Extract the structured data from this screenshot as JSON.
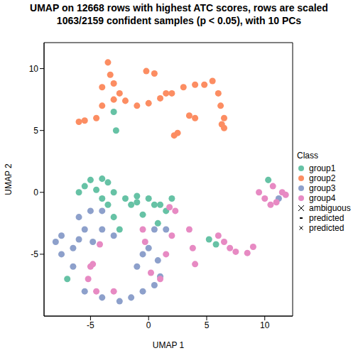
{
  "chart_data": {
    "type": "scatter",
    "title": "UMAP on 12668 rows with highest ATC scores, rows are scaled\n1063/2159 confident samples (p < 0.05), with 10 PCs",
    "x_label": "UMAP 1",
    "y_label": "UMAP 2",
    "legend_title": "Class",
    "legend": "right",
    "xlim": [
      -9,
      12.4
    ],
    "ylim": [
      -10,
      12.1
    ],
    "xticks": [
      -5,
      0,
      5,
      10
    ],
    "yticks": [
      -5,
      0,
      5,
      10
    ],
    "grid": false,
    "series": [
      {
        "name": "group1",
        "color": "#66C2A5",
        "marker": "circle",
        "values": [
          [
            -3,
            6.5
          ],
          [
            -2.8,
            5
          ],
          [
            -5.5,
            0.5
          ],
          [
            -6,
            0
          ],
          [
            -5,
            1
          ],
          [
            -4,
            1.1
          ],
          [
            -3.5,
            0.8
          ],
          [
            -4.5,
            0.2
          ],
          [
            -3.5,
            -1
          ],
          [
            -3,
            -2
          ],
          [
            -2,
            -0.5
          ],
          [
            -1.5,
            -1
          ],
          [
            -1,
            -0.3
          ],
          [
            0,
            -0.5
          ],
          [
            0.5,
            -1
          ],
          [
            1,
            -1
          ],
          [
            1.5,
            -1.5
          ],
          [
            -0.5,
            -1.8
          ],
          [
            -2.5,
            -3
          ],
          [
            5.2,
            -3.8
          ],
          [
            5.8,
            -4.2
          ],
          [
            10.3,
            1
          ],
          [
            -7,
            -7
          ],
          [
            -1,
            -0.8
          ],
          [
            2,
            -0.5
          ],
          [
            -4,
            -0.5
          ],
          [
            -3,
            0
          ],
          [
            0.8,
            -2.5
          ]
        ]
      },
      {
        "name": "group2",
        "color": "#FC8D62",
        "marker": "circle",
        "values": [
          [
            -3.5,
            10.5
          ],
          [
            -3.3,
            9.5
          ],
          [
            -3,
            8.8
          ],
          [
            -4,
            8.5
          ],
          [
            -2.5,
            8
          ],
          [
            -3,
            7.5
          ],
          [
            -4,
            7
          ],
          [
            -1,
            7
          ],
          [
            0,
            7.2
          ],
          [
            1,
            7.6
          ],
          [
            2,
            8
          ],
          [
            3,
            8.5
          ],
          [
            4,
            8.7
          ],
          [
            5.5,
            9
          ],
          [
            6,
            8
          ],
          [
            6.2,
            7
          ],
          [
            6.5,
            6
          ],
          [
            6.3,
            5.5
          ],
          [
            -6,
            5.7
          ],
          [
            -5.5,
            5.8
          ],
          [
            -4.5,
            6
          ],
          [
            -2,
            7.4
          ],
          [
            0.5,
            9.6
          ],
          [
            -0.2,
            9.8
          ],
          [
            2.5,
            4.8
          ],
          [
            2.2,
            4.6
          ],
          [
            4,
            6
          ],
          [
            3.5,
            6.2
          ],
          [
            1.5,
            8
          ],
          [
            4.8,
            8.7
          ],
          [
            6.5,
            5.2
          ]
        ]
      },
      {
        "name": "group3",
        "color": "#8DA0CB",
        "marker": "circle",
        "values": [
          [
            -7.5,
            -3.5
          ],
          [
            -8,
            -4
          ],
          [
            -7.5,
            -5
          ],
          [
            -6.5,
            -4.5
          ],
          [
            -6,
            -3.8
          ],
          [
            -5.5,
            -3
          ],
          [
            -6,
            -2
          ],
          [
            -5,
            -1.5
          ],
          [
            -4,
            -1.5
          ],
          [
            -4,
            -3
          ],
          [
            -4.8,
            -4
          ],
          [
            -5.5,
            -8
          ],
          [
            -4,
            -8.5
          ],
          [
            -2.5,
            -8.8
          ],
          [
            -1.5,
            -8.5
          ],
          [
            -0.5,
            -8
          ],
          [
            0.5,
            -7.5
          ],
          [
            -1,
            -6
          ],
          [
            -0.5,
            -5
          ],
          [
            0,
            -4.5
          ],
          [
            0.5,
            -3
          ],
          [
            1,
            -6.8
          ],
          [
            0.8,
            -5.5
          ],
          [
            -6.5,
            -6
          ],
          [
            -3,
            -3.5
          ],
          [
            11.2,
            -0.5
          ],
          [
            1.5,
            -3
          ]
        ]
      },
      {
        "name": "group4",
        "color": "#E78AC3",
        "marker": "circle",
        "values": [
          [
            -5,
            -6
          ],
          [
            -5.2,
            -7
          ],
          [
            -4.5,
            -8
          ],
          [
            -3,
            -8
          ],
          [
            -4.8,
            -5.8
          ],
          [
            -0.5,
            -3
          ],
          [
            -0.3,
            -4
          ],
          [
            0.2,
            -6.5
          ],
          [
            1,
            -7
          ],
          [
            1.5,
            -5
          ],
          [
            2,
            -3.5
          ],
          [
            2.3,
            -1.5
          ],
          [
            1.8,
            -1.2
          ],
          [
            3.5,
            -3
          ],
          [
            3.8,
            -4.5
          ],
          [
            4,
            -5.8
          ],
          [
            6,
            -3.5
          ],
          [
            6.5,
            -4
          ],
          [
            7.5,
            -4.8
          ],
          [
            8.5,
            -4.9
          ],
          [
            7,
            -4.5
          ],
          [
            9,
            -4.4
          ],
          [
            9.5,
            0
          ],
          [
            10,
            -0.5
          ],
          [
            10.5,
            -1
          ],
          [
            11,
            -0.8
          ],
          [
            11.5,
            0
          ],
          [
            11.8,
            -0.2
          ],
          [
            10.7,
            0.5
          ],
          [
            -4.2,
            -4.2
          ]
        ]
      },
      {
        "name": "ambiguous",
        "color": "#000000",
        "marker": "x",
        "values": []
      },
      {
        "name": "predicted",
        "color": "#000000",
        "marker": "dash",
        "values": []
      },
      {
        "name": "predicted",
        "color": "#000000",
        "marker": "small_x",
        "values": []
      }
    ]
  }
}
